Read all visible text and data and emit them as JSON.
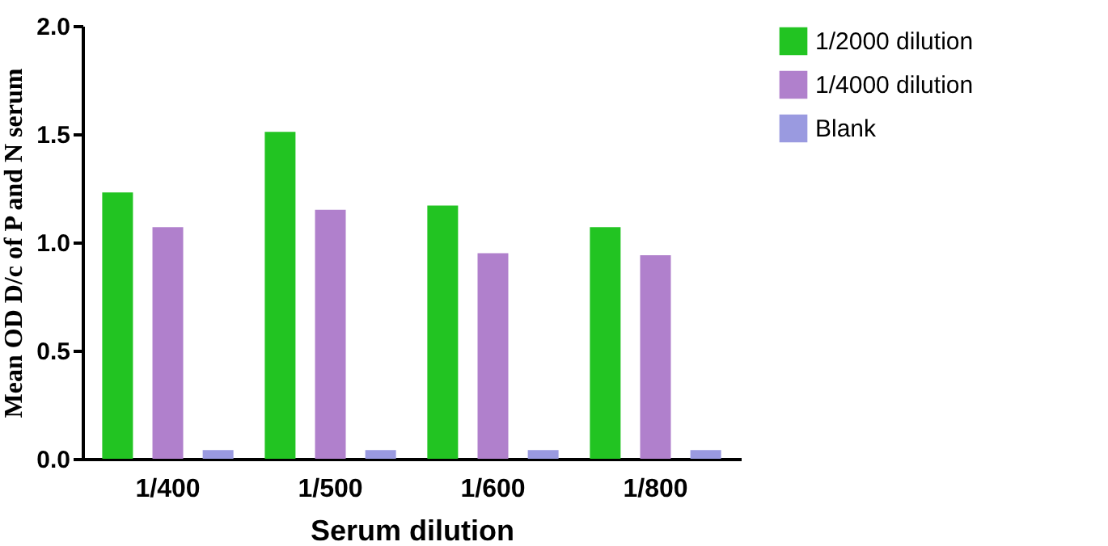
{
  "chart_data": {
    "type": "bar",
    "xlabel": "Serum dilution",
    "ylabel": "Mean OD D/c of P and N serum",
    "categories": [
      "1/400",
      "1/500",
      "1/600",
      "1/800"
    ],
    "series": [
      {
        "name": "1/2000 dilution",
        "color": "#22c422",
        "values": [
          1.23,
          1.51,
          1.17,
          1.07
        ]
      },
      {
        "name": "1/4000 dilution",
        "color": "#b080cc",
        "values": [
          1.07,
          1.15,
          0.95,
          0.94
        ]
      },
      {
        "name": "Blank",
        "color": "#9a9ae0",
        "values": [
          0.04,
          0.04,
          0.04,
          0.04
        ]
      }
    ],
    "ylim": [
      0,
      2.0
    ],
    "yticks": [
      {
        "value": 0,
        "label": "0.0"
      },
      0.5,
      {
        "value": 1,
        "label": "1.0"
      },
      1.5,
      {
        "value": 2,
        "label": "2.0"
      }
    ],
    "grid": false,
    "legend": "top right"
  }
}
